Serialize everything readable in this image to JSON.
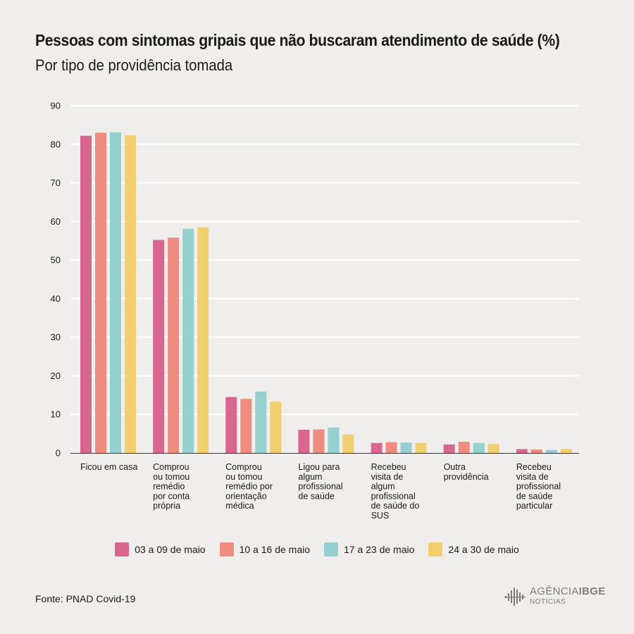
{
  "header": {
    "title": "Pessoas com sintomas gripais que não buscaram atendimento de saúde (%)",
    "subtitle": "Por tipo de providência tomada"
  },
  "footer": {
    "source": "Fonte: PNAD Covid-19",
    "logo_main_light": "AGÊNCIA",
    "logo_main_bold": "IBGE",
    "logo_sub": "NOTÍCIAS"
  },
  "colors": {
    "background": "#efeeec",
    "grid": "#ffffff",
    "axis": "#333333",
    "logo": "#7d7d7d"
  },
  "chart_data": {
    "type": "bar",
    "title": "Pessoas com sintomas gripais que não buscaram atendimento de saúde (%)",
    "subtitle": "Por tipo de providência tomada",
    "xlabel": "",
    "ylabel": "",
    "ylim": [
      0,
      90
    ],
    "yticks": [
      0,
      10,
      20,
      30,
      40,
      50,
      60,
      70,
      80,
      90
    ],
    "grid": true,
    "legend": "bottom",
    "categories": [
      [
        "Ficou em casa"
      ],
      [
        "Comprou",
        "ou tomou",
        "remédio",
        "por conta",
        "própria"
      ],
      [
        "Comprou",
        "ou tomou",
        "remédio por",
        "orientação",
        "médica"
      ],
      [
        "Ligou para",
        "algum",
        "profissional",
        "de saúde"
      ],
      [
        "Recebeu",
        "visita de",
        "algum",
        "profissional",
        "de saúde do",
        "SUS"
      ],
      [
        "Outra",
        "providência"
      ],
      [
        "Recebeu",
        "visita de",
        "profissional",
        "de saúde",
        "particular"
      ]
    ],
    "series": [
      {
        "name": "03 a 09 de maio",
        "color": "#d9668f",
        "values": [
          82.2,
          55.2,
          14.5,
          6.0,
          2.6,
          2.2,
          1.0
        ]
      },
      {
        "name": "10 a 16 de maio",
        "color": "#ef8c80",
        "values": [
          83.0,
          55.8,
          14.0,
          6.1,
          2.8,
          2.9,
          0.9
        ]
      },
      {
        "name": "17 a 23 de maio",
        "color": "#95cfcf",
        "values": [
          83.1,
          58.1,
          15.9,
          6.6,
          2.7,
          2.6,
          0.8
        ]
      },
      {
        "name": "24 a 30 de maio",
        "color": "#f1cf6e",
        "values": [
          82.3,
          58.5,
          13.3,
          4.8,
          2.6,
          2.3,
          1.0
        ]
      }
    ]
  }
}
